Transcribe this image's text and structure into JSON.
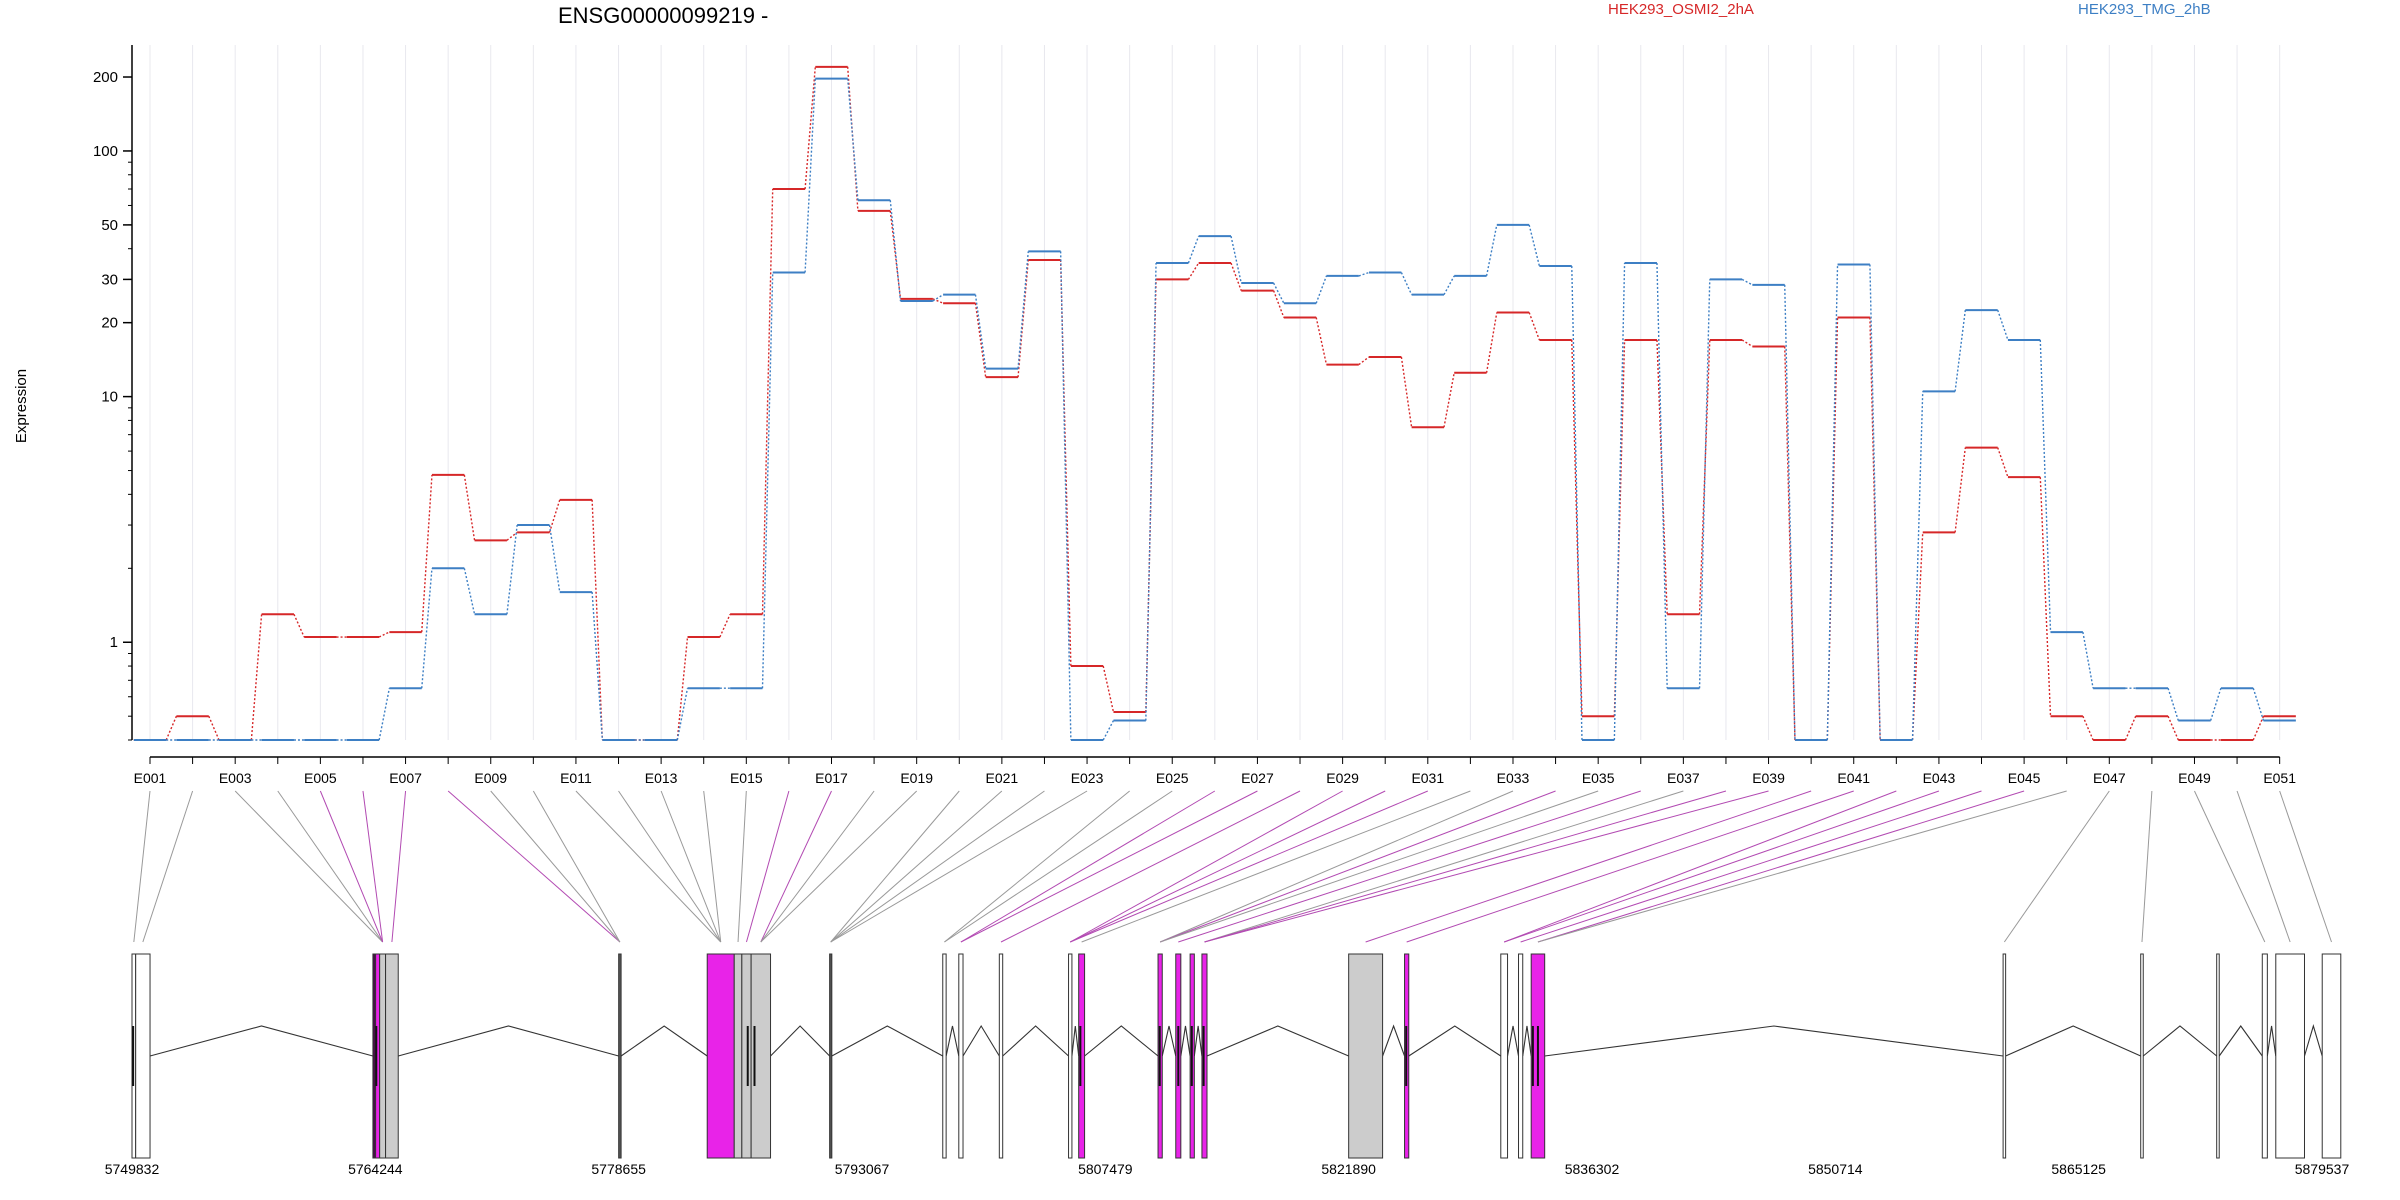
{
  "chart_data": {
    "type": "line",
    "title": "ENSG00000099219 -",
    "ylabel": "Expression",
    "yscale": "log",
    "ylim": [
      0.4,
      270
    ],
    "y_ticks": [
      1,
      10,
      20,
      30,
      50,
      100,
      200
    ],
    "grid": "vertical",
    "legend_placement": "top-right",
    "categories": [
      "E001",
      "E002",
      "E003",
      "E004",
      "E005",
      "E006",
      "E007",
      "E008",
      "E009",
      "E010",
      "E011",
      "E012",
      "E013",
      "E014",
      "E015",
      "E016",
      "E017",
      "E018",
      "E019",
      "E020",
      "E021",
      "E022",
      "E023",
      "E024",
      "E025",
      "E026",
      "E027",
      "E028",
      "E029",
      "E030",
      "E031",
      "E032",
      "E033",
      "E034",
      "E035",
      "E036",
      "E037",
      "E038",
      "E039",
      "E040",
      "E041",
      "E042",
      "E043",
      "E044",
      "E045",
      "E046",
      "E047",
      "E048",
      "E049",
      "E050",
      "E051"
    ],
    "category_labels": [
      "E001",
      "",
      "E003",
      "",
      "E005",
      "",
      "E007",
      "",
      "E009",
      "",
      "E011",
      "",
      "E013",
      "",
      "E015",
      "",
      "E017",
      "",
      "E019",
      "",
      "E021",
      "",
      "E023",
      "",
      "E025",
      "",
      "E027",
      "",
      "E029",
      "",
      "E031",
      "",
      "E033",
      "",
      "E035",
      "",
      "E037",
      "",
      "E039",
      "",
      "E041",
      "",
      "E043",
      "",
      "E045",
      "",
      "E047",
      "",
      "E049",
      "",
      "E051"
    ],
    "series": [
      {
        "name": "HEK293_OSMI2_2hA",
        "color": "#d62728",
        "values": [
          0.4,
          0.5,
          0.4,
          1.3,
          1.05,
          1.05,
          1.1,
          4.8,
          2.6,
          2.8,
          3.8,
          0.4,
          0.4,
          1.05,
          1.3,
          70,
          220,
          57,
          25,
          24,
          12,
          36,
          0.8,
          0.52,
          30,
          35,
          27,
          21,
          13.5,
          14.5,
          7.5,
          12.5,
          22,
          17,
          0.5,
          17,
          1.3,
          17,
          16,
          0.4,
          21,
          0.4,
          2.8,
          6.2,
          4.7,
          0.5,
          0.4,
          0.5,
          0.4,
          0.4,
          0.5
        ]
      },
      {
        "name": "HEK293_TMG_2hB",
        "color": "#3d7fc4",
        "values": [
          0.4,
          0.4,
          0.4,
          0.4,
          0.4,
          0.4,
          0.65,
          2.0,
          1.3,
          3.0,
          1.6,
          0.4,
          0.4,
          0.65,
          0.65,
          32,
          197,
          63,
          24.5,
          26,
          13,
          39,
          0.4,
          0.48,
          35,
          45,
          29,
          24,
          31,
          32,
          26,
          31,
          50,
          34,
          0.4,
          35,
          0.65,
          30,
          28.5,
          0.4,
          34.5,
          0.4,
          10.5,
          22.5,
          17,
          1.1,
          0.65,
          0.65,
          0.48,
          0.65,
          0.48
        ]
      }
    ],
    "genome_axis": {
      "ticks": [
        "5749832",
        "5764244",
        "5778655",
        "5793067",
        "5807479",
        "5821890",
        "5836302",
        "5850714",
        "5865125",
        "5879537"
      ],
      "start": 5749832,
      "end": 5879537
    },
    "exons": [
      {
        "start": 5749832,
        "end": 5750050,
        "fill": "#ffffff"
      },
      {
        "start": 5750050,
        "end": 5750900,
        "fill": "#ffffff"
      },
      {
        "start": 5764100,
        "end": 5764260,
        "fill": "#4a0a4a"
      },
      {
        "start": 5764260,
        "end": 5764500,
        "fill": "#e823e8"
      },
      {
        "start": 5764500,
        "end": 5764850,
        "fill": "#cccccc"
      },
      {
        "start": 5764850,
        "end": 5765600,
        "fill": "#cccccc"
      },
      {
        "start": 5778655,
        "end": 5778800,
        "fill": "#555555"
      },
      {
        "start": 5783900,
        "end": 5785500,
        "fill": "#e823e8"
      },
      {
        "start": 5785500,
        "end": 5785950,
        "fill": "#cccccc"
      },
      {
        "start": 5785950,
        "end": 5786500,
        "fill": "#cccccc"
      },
      {
        "start": 5786500,
        "end": 5787650,
        "fill": "#cccccc"
      },
      {
        "start": 5791150,
        "end": 5791280,
        "fill": "#555555"
      },
      {
        "start": 5797850,
        "end": 5798050,
        "fill": "#ffffff"
      },
      {
        "start": 5798800,
        "end": 5799050,
        "fill": "#ffffff"
      },
      {
        "start": 5801200,
        "end": 5801400,
        "fill": "#ffffff"
      },
      {
        "start": 5805300,
        "end": 5805500,
        "fill": "#ffffff"
      },
      {
        "start": 5805900,
        "end": 5806250,
        "fill": "#e823e8"
      },
      {
        "start": 5810600,
        "end": 5810850,
        "fill": "#e823e8"
      },
      {
        "start": 5811650,
        "end": 5811950,
        "fill": "#e823e8"
      },
      {
        "start": 5812500,
        "end": 5812750,
        "fill": "#e823e8"
      },
      {
        "start": 5813200,
        "end": 5813500,
        "fill": "#e823e8"
      },
      {
        "start": 5821890,
        "end": 5823900,
        "fill": "#cccccc"
      },
      {
        "start": 5825200,
        "end": 5825450,
        "fill": "#e823e8"
      },
      {
        "start": 5830900,
        "end": 5831300,
        "fill": "#ffffff"
      },
      {
        "start": 5831950,
        "end": 5832200,
        "fill": "#ffffff"
      },
      {
        "start": 5832700,
        "end": 5833500,
        "fill": "#e823e8"
      },
      {
        "start": 5860650,
        "end": 5860800,
        "fill": "#ffffff"
      },
      {
        "start": 5868800,
        "end": 5868950,
        "fill": "#ffffff"
      },
      {
        "start": 5873300,
        "end": 5873450,
        "fill": "#ffffff"
      },
      {
        "start": 5876000,
        "end": 5876300,
        "fill": "#ffffff"
      },
      {
        "start": 5876800,
        "end": 5878500,
        "fill": "#ffffff"
      },
      {
        "start": 5879550,
        "end": 5880650,
        "fill": "#ffffff"
      }
    ],
    "exon_markers": [
      5749900,
      5764300,
      5786300,
      5786700,
      5806000,
      5810700,
      5811800,
      5812600,
      5813300,
      5825300,
      5832800,
      5833100
    ],
    "connector_highlight": [
      "E005",
      "E006",
      "E007",
      "E008",
      "E016",
      "E017",
      "E026",
      "E027",
      "E028",
      "E029",
      "E030",
      "E031",
      "E034",
      "E036",
      "E038",
      "E039",
      "E040",
      "E041",
      "E042",
      "E043",
      "E044",
      "E045"
    ],
    "connector_color": "#b24ab2",
    "connector_color_default": "#999999",
    "exon_band_targets": [
      0,
      1,
      4,
      4,
      4,
      4,
      4,
      5,
      5,
      6,
      6,
      6,
      7,
      7,
      7,
      7,
      7,
      8,
      9,
      9,
      10,
      10,
      10,
      10,
      11,
      11,
      11,
      11,
      11,
      12,
      12,
      13,
      13,
      14,
      14,
      15,
      15,
      15,
      16,
      16,
      17,
      17,
      17,
      18,
      19,
      20,
      20,
      20,
      21,
      21,
      22,
      23,
      23,
      24,
      25,
      25,
      25,
      26,
      27,
      28,
      29,
      30,
      31
    ]
  }
}
